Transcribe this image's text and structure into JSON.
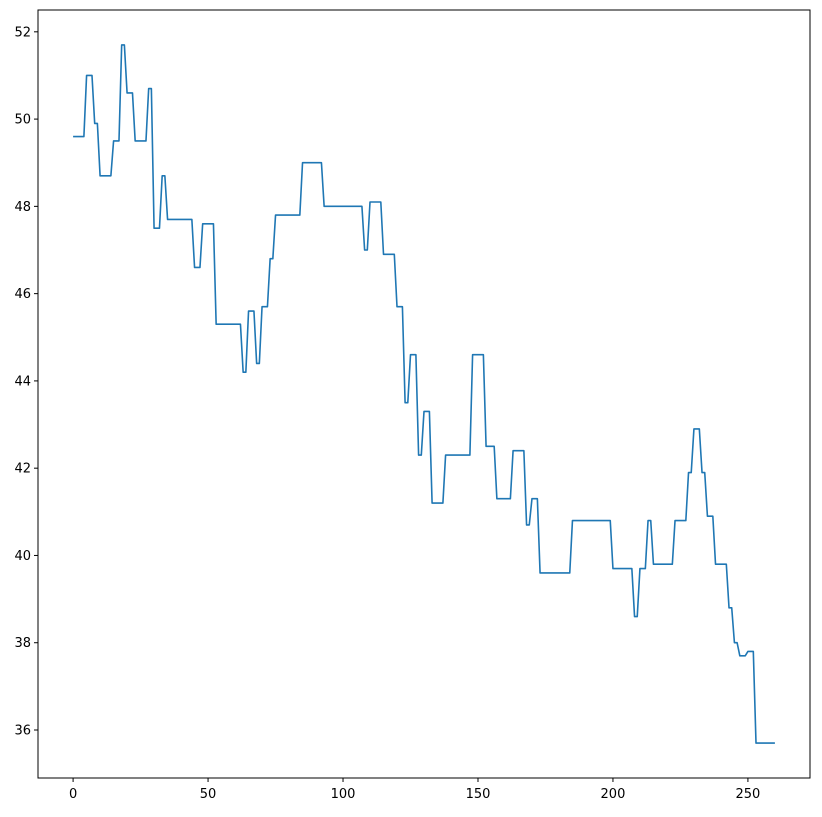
{
  "chart_data": {
    "type": "line",
    "title": "",
    "xlabel": "",
    "ylabel": "",
    "xlim": [
      -13,
      273
    ],
    "ylim": [
      34.9,
      52.5
    ],
    "grid": false,
    "legend": "none",
    "line_color": "#1f77b4",
    "x_ticks": [
      0,
      50,
      100,
      150,
      200,
      250
    ],
    "y_ticks": [
      36,
      38,
      40,
      42,
      44,
      46,
      48,
      50,
      52
    ],
    "series": [
      {
        "points": [
          [
            0,
            49.6
          ],
          [
            4,
            49.6
          ],
          [
            5,
            51.0
          ],
          [
            7,
            51.0
          ],
          [
            8,
            49.9
          ],
          [
            9,
            49.9
          ],
          [
            10,
            48.7
          ],
          [
            14,
            48.7
          ],
          [
            15,
            49.5
          ],
          [
            17,
            49.5
          ],
          [
            18,
            51.7
          ],
          [
            19,
            51.7
          ],
          [
            20,
            50.6
          ],
          [
            22,
            50.6
          ],
          [
            23,
            49.5
          ],
          [
            27,
            49.5
          ],
          [
            28,
            50.7
          ],
          [
            29,
            50.7
          ],
          [
            30,
            47.5
          ],
          [
            32,
            47.5
          ],
          [
            33,
            48.7
          ],
          [
            34,
            48.7
          ],
          [
            35,
            47.7
          ],
          [
            44,
            47.7
          ],
          [
            45,
            46.6
          ],
          [
            47,
            46.6
          ],
          [
            48,
            47.6
          ],
          [
            52,
            47.6
          ],
          [
            53,
            45.3
          ],
          [
            62,
            45.3
          ],
          [
            63,
            44.2
          ],
          [
            64,
            44.2
          ],
          [
            65,
            45.6
          ],
          [
            67,
            45.6
          ],
          [
            68,
            44.4
          ],
          [
            69,
            44.4
          ],
          [
            70,
            45.7
          ],
          [
            72,
            45.7
          ],
          [
            73,
            46.8
          ],
          [
            74,
            46.8
          ],
          [
            75,
            47.8
          ],
          [
            84,
            47.8
          ],
          [
            85,
            49.0
          ],
          [
            92,
            49.0
          ],
          [
            93,
            48.0
          ],
          [
            107,
            48.0
          ],
          [
            108,
            47.0
          ],
          [
            109,
            47.0
          ],
          [
            110,
            48.1
          ],
          [
            114,
            48.1
          ],
          [
            115,
            46.9
          ],
          [
            119,
            46.9
          ],
          [
            120,
            45.7
          ],
          [
            122,
            45.7
          ],
          [
            123,
            43.5
          ],
          [
            124,
            43.5
          ],
          [
            125,
            44.6
          ],
          [
            127,
            44.6
          ],
          [
            128,
            42.3
          ],
          [
            129,
            42.3
          ],
          [
            130,
            43.3
          ],
          [
            132,
            43.3
          ],
          [
            133,
            41.2
          ],
          [
            137,
            41.2
          ],
          [
            138,
            42.3
          ],
          [
            147,
            42.3
          ],
          [
            148,
            44.6
          ],
          [
            152,
            44.6
          ],
          [
            153,
            42.5
          ],
          [
            156,
            42.5
          ],
          [
            157,
            41.3
          ],
          [
            162,
            41.3
          ],
          [
            163,
            42.4
          ],
          [
            167,
            42.4
          ],
          [
            168,
            40.7
          ],
          [
            169,
            40.7
          ],
          [
            170,
            41.3
          ],
          [
            172,
            41.3
          ],
          [
            173,
            39.6
          ],
          [
            184,
            39.6
          ],
          [
            185,
            40.8
          ],
          [
            199,
            40.8
          ],
          [
            200,
            39.7
          ],
          [
            207,
            39.7
          ],
          [
            208,
            38.6
          ],
          [
            209,
            38.6
          ],
          [
            210,
            39.7
          ],
          [
            212,
            39.7
          ],
          [
            213,
            40.8
          ],
          [
            214,
            40.8
          ],
          [
            215,
            39.8
          ],
          [
            222,
            39.8
          ],
          [
            223,
            40.8
          ],
          [
            227,
            40.8
          ],
          [
            228,
            41.9
          ],
          [
            229,
            41.9
          ],
          [
            230,
            42.9
          ],
          [
            232,
            42.9
          ],
          [
            233,
            41.9
          ],
          [
            234,
            41.9
          ],
          [
            235,
            40.9
          ],
          [
            237,
            40.9
          ],
          [
            238,
            39.8
          ],
          [
            242,
            39.8
          ],
          [
            243,
            38.8
          ],
          [
            244,
            38.8
          ],
          [
            245,
            38.0
          ],
          [
            246,
            38.0
          ],
          [
            247,
            37.7
          ],
          [
            249,
            37.7
          ],
          [
            250,
            37.8
          ],
          [
            252,
            37.8
          ],
          [
            253,
            35.7
          ],
          [
            260,
            35.7
          ]
        ]
      }
    ]
  }
}
